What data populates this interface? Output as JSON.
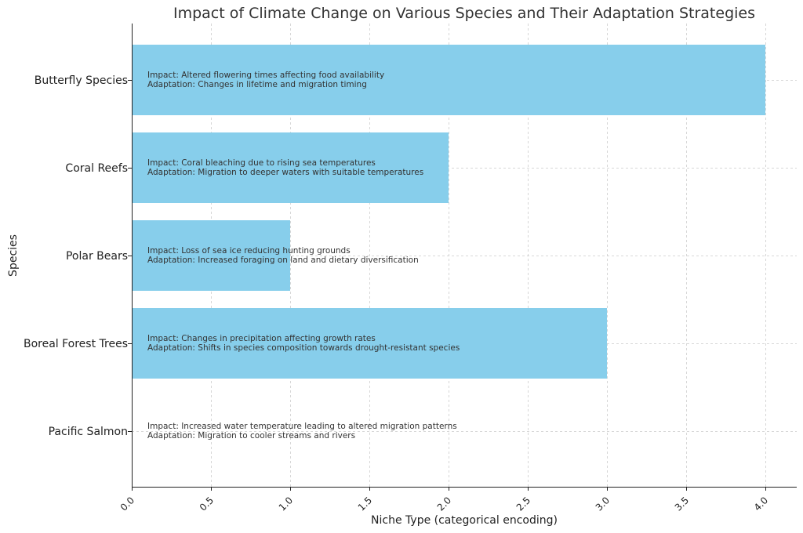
{
  "chart_data": {
    "type": "bar",
    "orientation": "horizontal",
    "title": "Impact of Climate Change on Various Species and Their Adaptation Strategies",
    "xlabel": "Niche Type (categorical encoding)",
    "ylabel": "Species",
    "xlim": [
      0,
      4.2
    ],
    "xticks": [
      "0.0",
      "0.5",
      "1.0",
      "1.5",
      "2.0",
      "2.5",
      "3.0",
      "3.5",
      "4.0"
    ],
    "grid": true,
    "bar_color": "#87ceeb",
    "categories": [
      "Butterfly Species",
      "Coral Reefs",
      "Polar Bears",
      "Boreal Forest Trees",
      "Pacific Salmon"
    ],
    "values": [
      4,
      2,
      1,
      3,
      0
    ],
    "annotations": [
      {
        "impact": "Impact: Altered flowering times affecting food availability",
        "adaptation": "Adaptation: Changes in lifetime and migration timing"
      },
      {
        "impact": "Impact: Coral bleaching due to rising sea temperatures",
        "adaptation": "Adaptation: Migration to deeper waters with suitable temperatures"
      },
      {
        "impact": "Impact: Loss of sea ice reducing hunting grounds",
        "adaptation": "Adaptation: Increased foraging on land and dietary diversification"
      },
      {
        "impact": "Impact: Changes in precipitation affecting growth rates",
        "adaptation": "Adaptation: Shifts in species composition towards drought-resistant species"
      },
      {
        "impact": "Impact: Increased water temperature leading to altered migration patterns",
        "adaptation": "Adaptation: Migration to cooler streams and rivers"
      }
    ]
  }
}
